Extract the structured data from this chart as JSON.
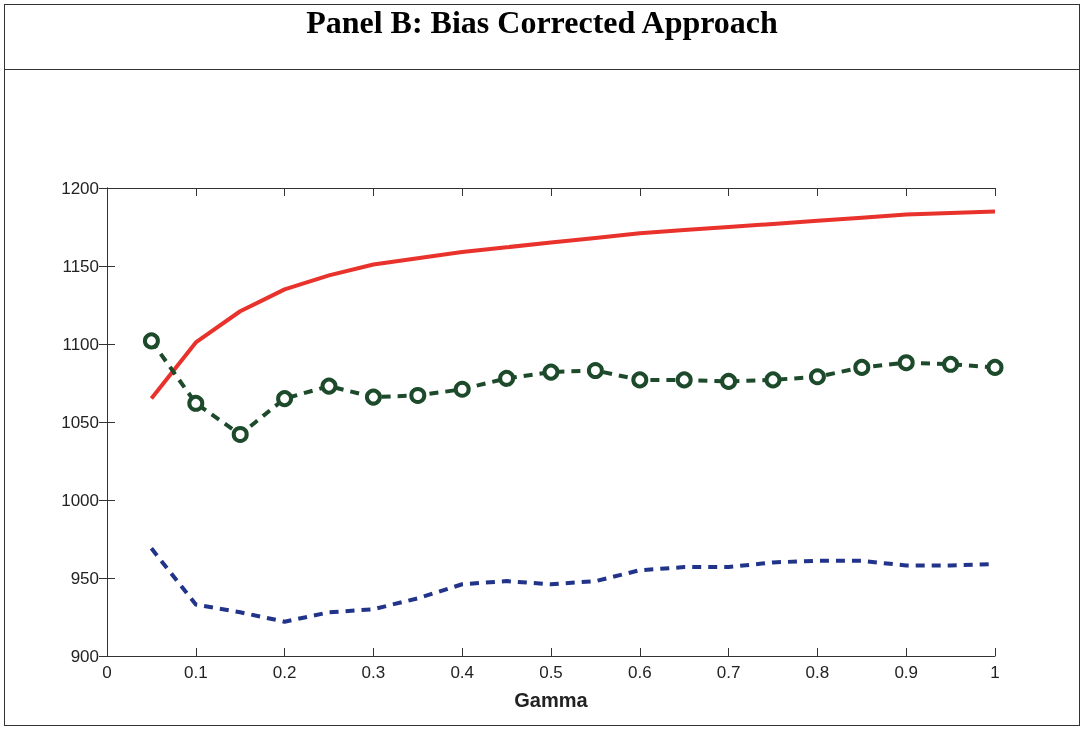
{
  "chart_data": {
    "type": "line",
    "title": "Panel B: Bias Corrected Approach",
    "xlabel": "Gamma",
    "x": [
      0.05,
      0.1,
      0.15,
      0.2,
      0.25,
      0.3,
      0.35,
      0.4,
      0.45,
      0.5,
      0.55,
      0.6,
      0.65,
      0.7,
      0.75,
      0.8,
      0.85,
      0.9,
      0.95,
      1.0
    ],
    "series": [
      {
        "color": "#e8322b",
        "line_style": "solid",
        "marker": "none",
        "values": [
          1065,
          1101,
          1121,
          1135,
          1144,
          1151,
          1155,
          1159,
          1162,
          1165,
          1168,
          1171,
          1173,
          1175,
          1177,
          1179,
          1181,
          1183,
          1184,
          1185
        ]
      },
      {
        "color": "#1c4a2a",
        "line_style": "dashed",
        "marker": "circle",
        "values": [
          1102,
          1062,
          1042,
          1065,
          1073,
          1066,
          1067,
          1071,
          1078,
          1082,
          1083,
          1077,
          1077,
          1076,
          1077,
          1079,
          1085,
          1088,
          1087,
          1085
        ]
      },
      {
        "color": "#22348a",
        "line_style": "dashed",
        "marker": "none",
        "values": [
          969,
          933,
          928,
          922,
          928,
          930,
          937,
          946,
          948,
          946,
          948,
          955,
          957,
          957,
          960,
          961,
          961,
          958,
          958,
          959
        ]
      }
    ],
    "xlim": [
      0,
      1
    ],
    "xticks": [
      0,
      0.1,
      0.2,
      0.3,
      0.4,
      0.5,
      0.6,
      0.7,
      0.8,
      0.9,
      1
    ],
    "ylim": [
      900,
      1200
    ],
    "yticks": [
      900,
      950,
      1000,
      1050,
      1100,
      1150,
      1200
    ],
    "grid": false
  }
}
